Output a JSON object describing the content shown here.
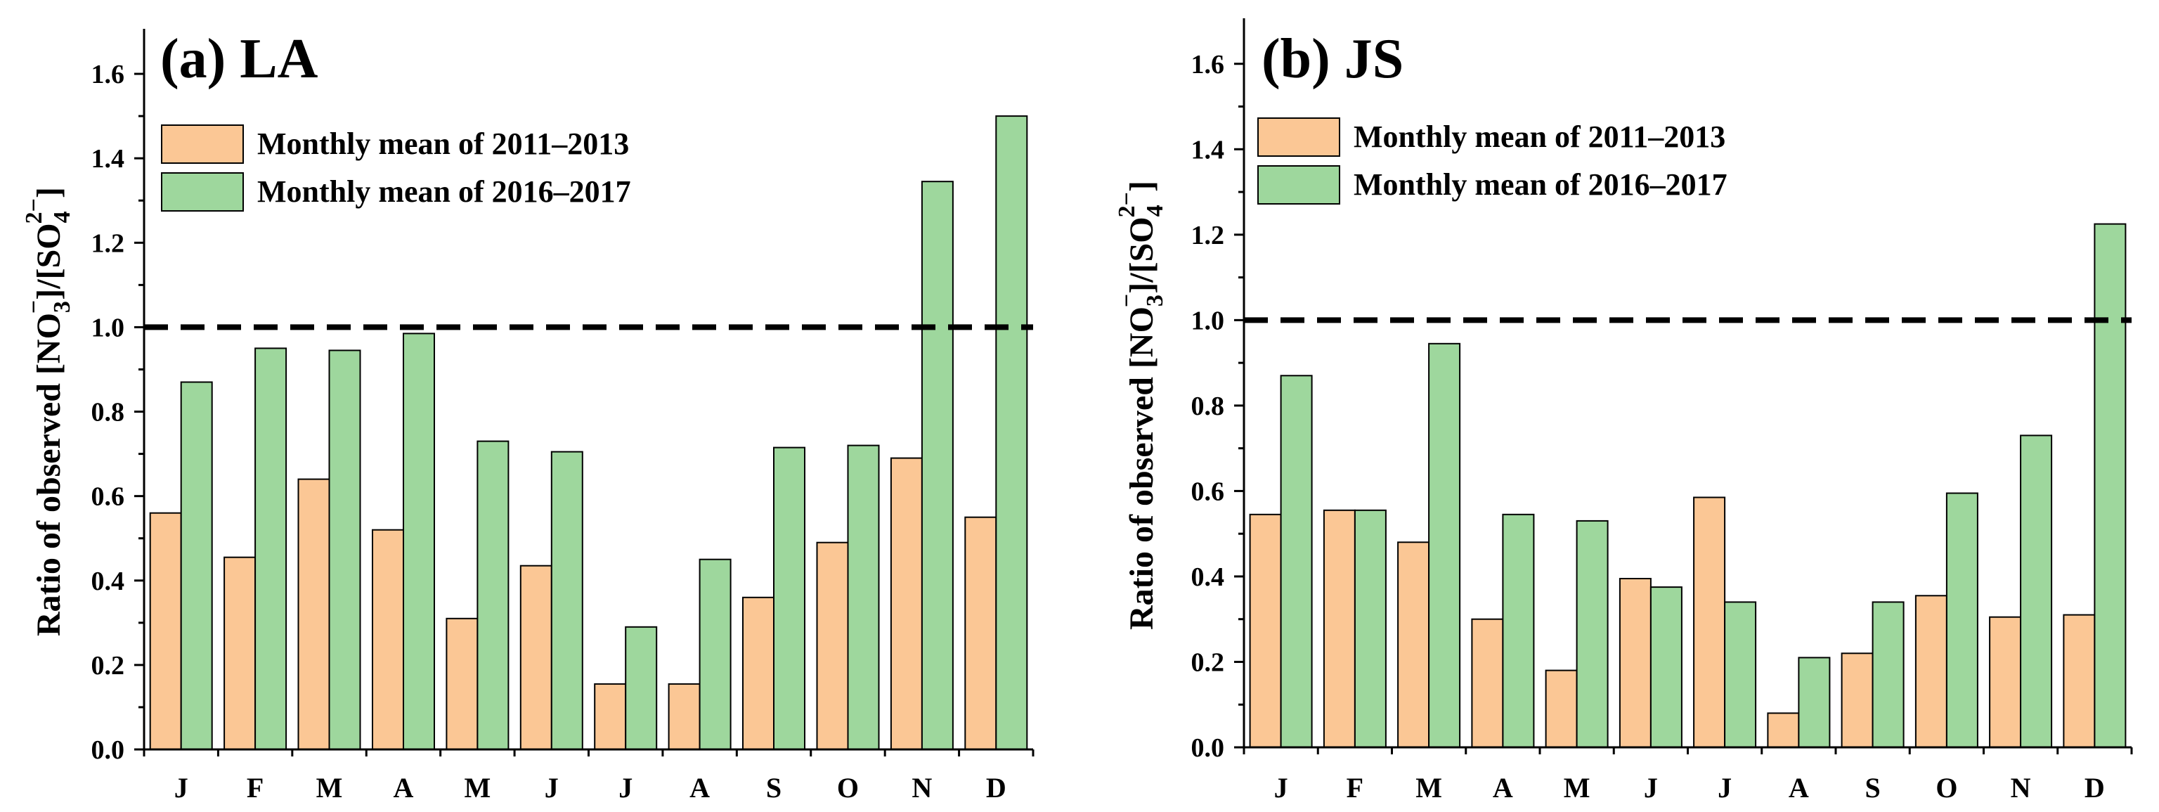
{
  "colors": {
    "series_a": "#fbc795",
    "series_b": "#9ed79d",
    "stroke": "#000000",
    "reference": "#000000"
  },
  "chart_data": [
    {
      "type": "bar",
      "title": "(a) LA",
      "xlabel": "",
      "ylabel": "Ratio of observed [NO3⁻]/[SO4²⁻]",
      "ylabel_parts": {
        "pre": "Ratio of observed [NO",
        "sub1": "3",
        "sup1": "−",
        "mid": "]/[SO",
        "sub2": "4",
        "sup2": "2−",
        "post": "]"
      },
      "categories": [
        "J",
        "F",
        "M",
        "A",
        "M",
        "J",
        "J",
        "A",
        "S",
        "O",
        "N",
        "D"
      ],
      "series": [
        {
          "name": "Monthly mean of 2011–2013",
          "values": [
            0.56,
            0.455,
            0.64,
            0.52,
            0.31,
            0.435,
            0.155,
            0.155,
            0.36,
            0.49,
            0.69,
            0.55
          ]
        },
        {
          "name": "Monthly mean of 2016–2017",
          "values": [
            0.87,
            0.95,
            0.945,
            0.985,
            0.73,
            0.705,
            0.29,
            0.45,
            0.715,
            0.72,
            1.345,
            1.5
          ]
        }
      ],
      "ylim": [
        0,
        1.7
      ],
      "yticks": [
        "0.0",
        "0.2",
        "0.4",
        "0.6",
        "0.8",
        "1.0",
        "1.2",
        "1.4",
        "1.6"
      ],
      "reference_line": 1.0,
      "legend": "top-left",
      "grid": false
    },
    {
      "type": "bar",
      "title": "(b) JS",
      "xlabel": "",
      "ylabel": "Ratio of observed [NO3⁻]/[SO4²⁻]",
      "ylabel_parts": {
        "pre": "Ratio of observed [NO",
        "sub1": "3",
        "sup1": "−",
        "mid": "]/[SO",
        "sub2": "4",
        "sup2": "2−",
        "post": "]"
      },
      "categories": [
        "J",
        "F",
        "M",
        "A",
        "M",
        "J",
        "J",
        "A",
        "S",
        "O",
        "N",
        "D"
      ],
      "series": [
        {
          "name": "Monthly mean of 2011–2013",
          "values": [
            0.545,
            0.555,
            0.48,
            0.3,
            0.18,
            0.395,
            0.585,
            0.08,
            0.22,
            0.355,
            0.305,
            0.31
          ]
        },
        {
          "name": "Monthly mean of 2016–2017",
          "values": [
            0.87,
            0.555,
            0.945,
            0.545,
            0.53,
            0.375,
            0.34,
            0.21,
            0.34,
            0.595,
            0.73,
            1.225
          ]
        }
      ],
      "ylim": [
        0,
        1.7
      ],
      "yticks": [
        "0.0",
        "0.2",
        "0.4",
        "0.6",
        "0.8",
        "1.0",
        "1.2",
        "1.4",
        "1.6"
      ],
      "reference_line": 1.0,
      "legend": "top-left",
      "grid": false
    }
  ]
}
